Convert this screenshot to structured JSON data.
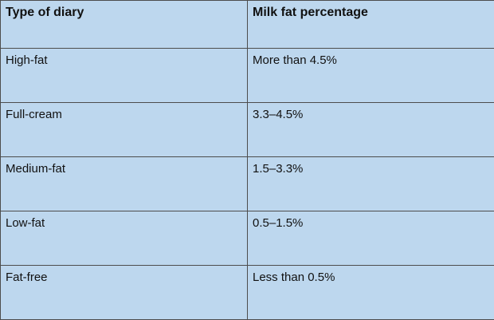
{
  "table": {
    "headers": [
      "Type of diary",
      "Milk fat percentage"
    ],
    "rows": [
      [
        "High-fat",
        "More than 4.5%"
      ],
      [
        "Full-cream",
        "3.3–4.5%"
      ],
      [
        "Medium-fat",
        "1.5–3.3%"
      ],
      [
        "Low-fat",
        "0.5–1.5%"
      ],
      [
        "Fat-free",
        "Less than 0.5%"
      ]
    ]
  },
  "colors": {
    "cell_background": "#bdd7ee",
    "border": "#4d4d4d",
    "text": "#111111"
  }
}
